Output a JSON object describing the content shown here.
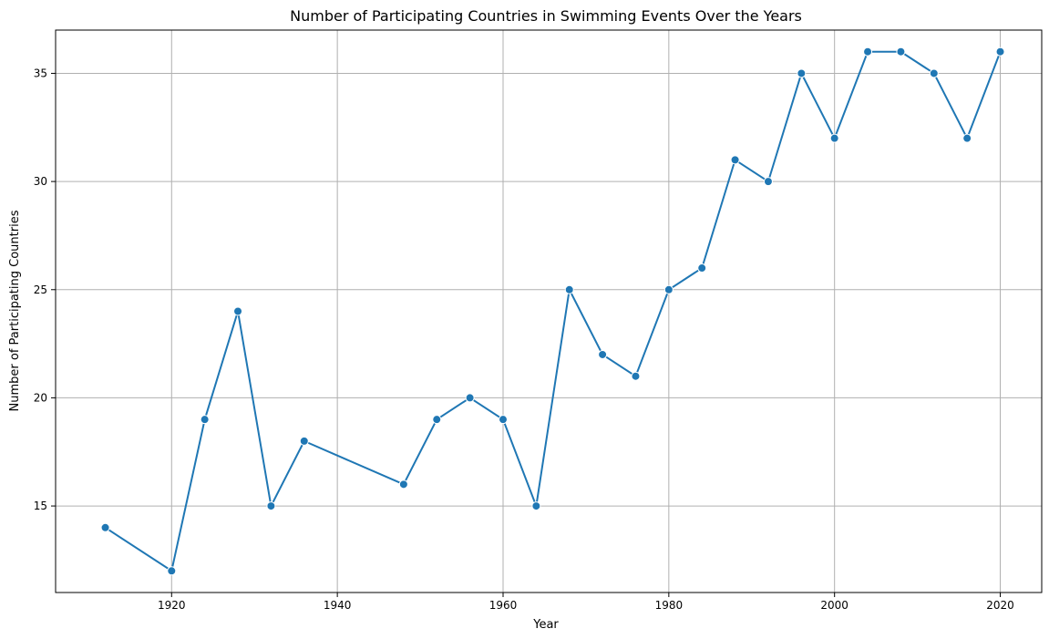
{
  "chart_data": {
    "type": "line",
    "title": "Number of Participating Countries in Swimming Events Over the Years",
    "xlabel": "Year",
    "ylabel": "Number of Participating Countries",
    "xlim": [
      1906,
      2025
    ],
    "ylim": [
      11.0,
      37.0
    ],
    "xticks": [
      1920,
      1940,
      1960,
      1980,
      2000,
      2020
    ],
    "yticks": [
      15,
      20,
      25,
      30,
      35
    ],
    "grid": true,
    "series": [
      {
        "color": "#1f77b4",
        "x": [
          1912,
          1920,
          1924,
          1928,
          1932,
          1936,
          1948,
          1952,
          1956,
          1960,
          1964,
          1968,
          1972,
          1976,
          1980,
          1984,
          1988,
          1992,
          1996,
          2000,
          2004,
          2008,
          2012,
          2016,
          2020
        ],
        "values": [
          14,
          12,
          19,
          24,
          15,
          18,
          16,
          19,
          20,
          19,
          15,
          25,
          22,
          21,
          25,
          26,
          31,
          30,
          35,
          32,
          36,
          36,
          35,
          32,
          36
        ]
      }
    ]
  }
}
